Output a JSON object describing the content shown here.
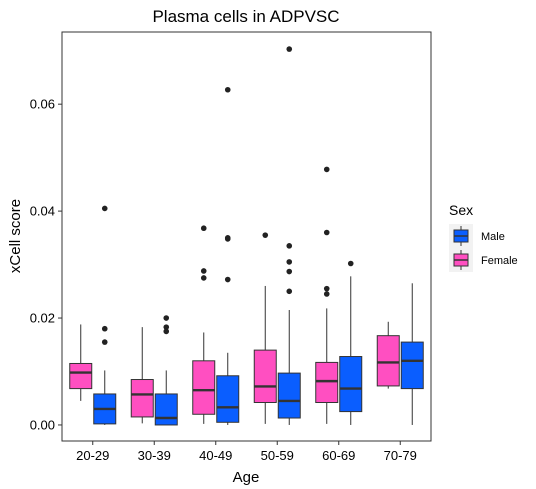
{
  "colors": {
    "Male": "#0a5eff",
    "Female": "#ff4fc1",
    "outline": "#333333",
    "outlier": "#222222"
  },
  "chart_data": {
    "type": "boxplot",
    "title": "Plasma cells in ADPVSC",
    "xlabel": "Age",
    "ylabel": "xCell score",
    "ylim": [
      -0.003,
      0.0735
    ],
    "yticks": [
      0.0,
      0.02,
      0.04,
      0.06
    ],
    "ytick_labels": [
      "0.00",
      "0.02",
      "0.04",
      "0.06"
    ],
    "categories": [
      "20-29",
      "30-39",
      "40-49",
      "50-59",
      "60-69",
      "70-79"
    ],
    "grid": false,
    "legend": {
      "title": "Sex",
      "position": "right",
      "entries": [
        "Male",
        "Female"
      ]
    },
    "series": [
      {
        "name": "Female",
        "boxes": [
          {
            "q1": 0.0068,
            "median": 0.0098,
            "q3": 0.0115,
            "whisker_low": 0.0045,
            "whisker_high": 0.0188,
            "outliers": []
          },
          {
            "q1": 0.0015,
            "median": 0.0057,
            "q3": 0.0085,
            "whisker_low": 0.0003,
            "whisker_high": 0.0183,
            "outliers": []
          },
          {
            "q1": 0.002,
            "median": 0.0065,
            "q3": 0.012,
            "whisker_low": 0.0002,
            "whisker_high": 0.0173,
            "outliers": [
              0.0275,
              0.0288,
              0.0368
            ]
          },
          {
            "q1": 0.0042,
            "median": 0.0072,
            "q3": 0.014,
            "whisker_low": 0.0002,
            "whisker_high": 0.026,
            "outliers": [
              0.0355
            ]
          },
          {
            "q1": 0.0042,
            "median": 0.0082,
            "q3": 0.0117,
            "whisker_low": 0.0002,
            "whisker_high": 0.0218,
            "outliers": [
              0.0245,
              0.0255,
              0.036,
              0.0478
            ]
          },
          {
            "q1": 0.0073,
            "median": 0.0117,
            "q3": 0.0167,
            "whisker_low": 0.0068,
            "whisker_high": 0.0193,
            "outliers": []
          }
        ]
      },
      {
        "name": "Male",
        "boxes": [
          {
            "q1": 0.0002,
            "median": 0.003,
            "q3": 0.0058,
            "whisker_low": 0.0,
            "whisker_high": 0.0102,
            "outliers": [
              0.0155,
              0.018,
              0.0405
            ]
          },
          {
            "q1": 0.0,
            "median": 0.0013,
            "q3": 0.0058,
            "whisker_low": 0.0,
            "whisker_high": 0.0102,
            "outliers": [
              0.0175,
              0.0183,
              0.02
            ]
          },
          {
            "q1": 0.0005,
            "median": 0.0033,
            "q3": 0.0092,
            "whisker_low": 0.0,
            "whisker_high": 0.0135,
            "outliers": [
              0.0272,
              0.0348,
              0.035,
              0.0627
            ]
          },
          {
            "q1": 0.0013,
            "median": 0.0045,
            "q3": 0.0097,
            "whisker_low": 0.0,
            "whisker_high": 0.0215,
            "outliers": [
              0.025,
              0.0287,
              0.0305,
              0.0335,
              0.0703
            ]
          },
          {
            "q1": 0.0025,
            "median": 0.0068,
            "q3": 0.0128,
            "whisker_low": 0.0,
            "whisker_high": 0.0278,
            "outliers": [
              0.0302
            ]
          },
          {
            "q1": 0.0068,
            "median": 0.012,
            "q3": 0.0155,
            "whisker_low": 0.0,
            "whisker_high": 0.0265,
            "outliers": []
          }
        ]
      }
    ]
  }
}
